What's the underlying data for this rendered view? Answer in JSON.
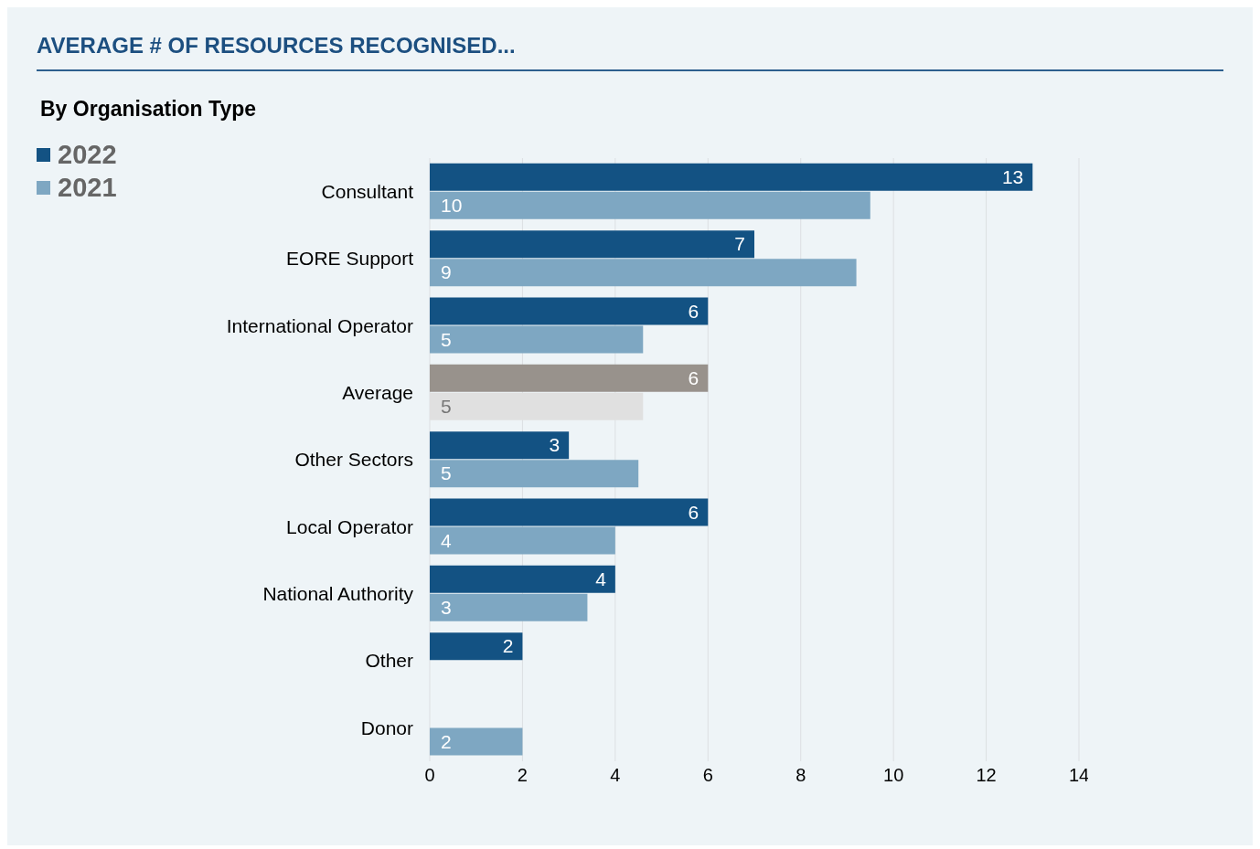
{
  "chart_data": {
    "type": "bar",
    "orientation": "horizontal",
    "title": "AVERAGE # OF RESOURCES RECOGNISED...",
    "subtitle": "By Organisation Type",
    "categories": [
      "Consultant",
      "EORE Support",
      "International Operator",
      "Average",
      "Other Sectors",
      "Local Operator",
      "National Authority",
      "Other",
      "Donor"
    ],
    "series": [
      {
        "name": "2022",
        "color": "#135283",
        "colors": [
          "#135283",
          "#135283",
          "#135283",
          "#98928c",
          "#135283",
          "#135283",
          "#135283",
          "#135283",
          "#135283"
        ],
        "values": [
          13,
          7,
          6,
          6,
          3,
          6,
          4,
          2,
          null
        ],
        "value_labels": [
          "13",
          "7",
          "6",
          "6",
          "3",
          "6",
          "4",
          "2",
          null
        ]
      },
      {
        "name": "2021",
        "color": "#7ea7c2",
        "colors": [
          "#7ea7c2",
          "#7ea7c2",
          "#7ea7c2",
          "#e0e0e0",
          "#7ea7c2",
          "#7ea7c2",
          "#7ea7c2",
          "#7ea7c2",
          "#7ea7c2"
        ],
        "values": [
          9.5,
          9.2,
          4.6,
          4.6,
          4.5,
          4.0,
          3.4,
          null,
          2.0
        ],
        "value_labels": [
          "10",
          "9",
          "5",
          "5",
          "5",
          "4",
          "3",
          null,
          "2"
        ]
      }
    ],
    "xlim": [
      0,
      14
    ],
    "xticks": [
      0,
      2,
      4,
      6,
      8,
      10,
      12,
      14
    ],
    "grid": "x",
    "legend": "top left"
  }
}
